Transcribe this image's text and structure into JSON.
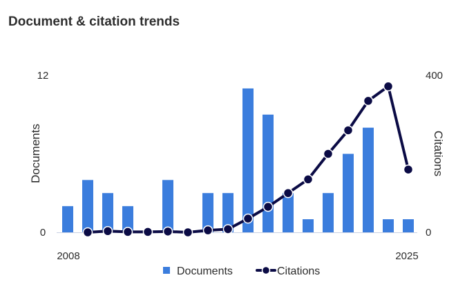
{
  "header": {
    "title": "Document & citation trends"
  },
  "chart_data": {
    "type": "bar",
    "x": [
      2008,
      2009,
      2010,
      2011,
      2012,
      2013,
      2014,
      2015,
      2016,
      2017,
      2018,
      2019,
      2020,
      2021,
      2022,
      2023,
      2024,
      2025
    ],
    "x_tick_labels": [
      "2008",
      "2025"
    ],
    "series": [
      {
        "name": "Documents",
        "type": "bar",
        "axis": "left",
        "color": "#3b7ddd",
        "values": [
          2,
          4,
          3,
          2,
          0,
          4,
          0,
          3,
          3,
          11,
          9,
          3,
          1,
          3,
          6,
          8,
          1,
          1
        ]
      },
      {
        "name": "Citations",
        "type": "line",
        "axis": "right",
        "color": "#0b0b45",
        "x": [
          2009,
          2010,
          2011,
          2012,
          2013,
          2014,
          2015,
          2016,
          2017,
          2018,
          2019,
          2020,
          2021,
          2022,
          2023,
          2024,
          2025
        ],
        "values": [
          0,
          3,
          1,
          1,
          2,
          0,
          5,
          8,
          35,
          65,
          100,
          135,
          200,
          260,
          335,
          372,
          160
        ]
      }
    ],
    "y_left": {
      "label": "Documents",
      "ylim": [
        0,
        12
      ],
      "ticks": [
        "0",
        "12"
      ]
    },
    "y_right": {
      "label": "Citations",
      "ylim": [
        0,
        400
      ],
      "ticks": [
        "0",
        "400"
      ]
    },
    "legend": {
      "placement": "bottom",
      "items": [
        "Documents",
        "Citations"
      ]
    },
    "grid": false
  }
}
